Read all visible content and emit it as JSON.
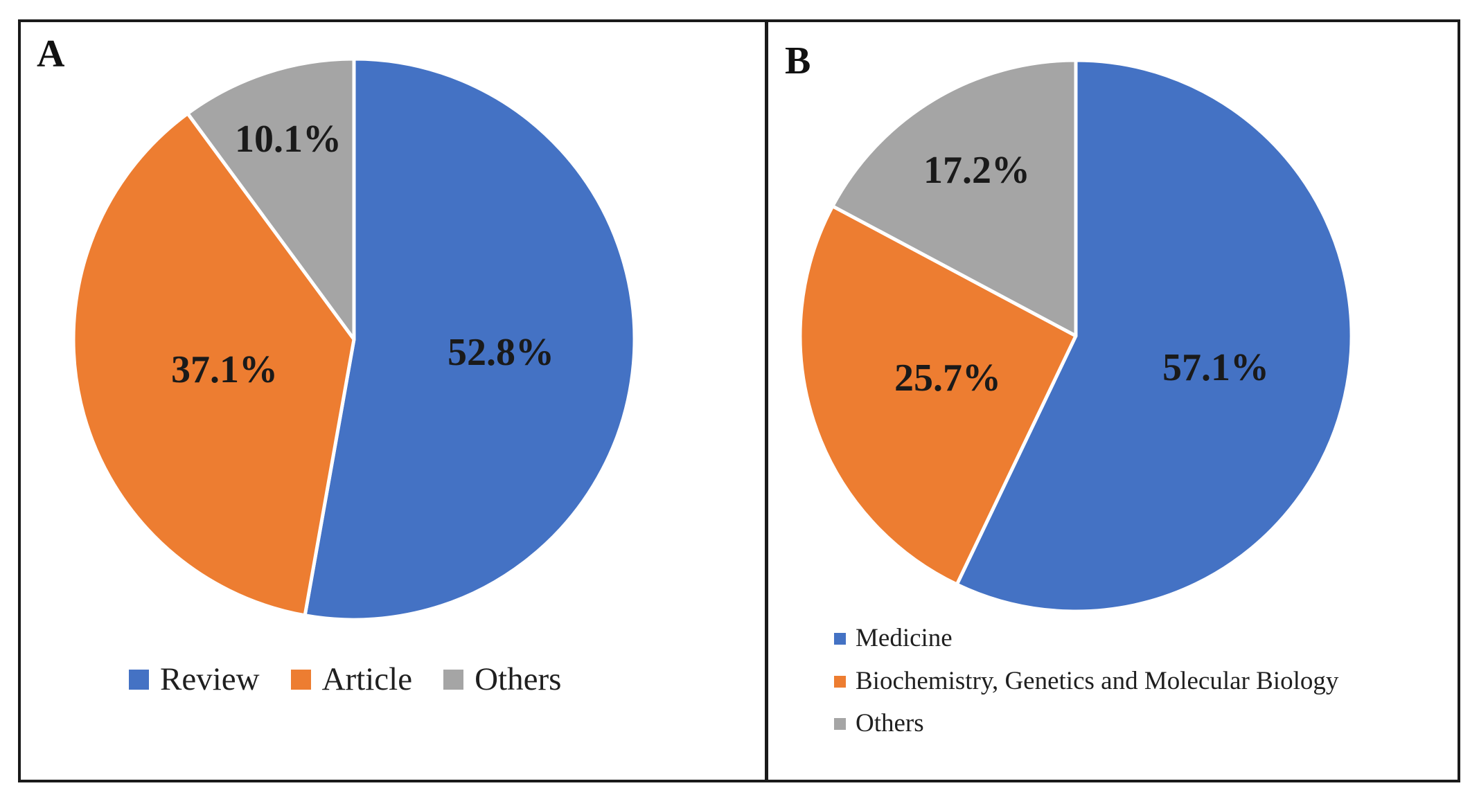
{
  "figure": {
    "panel_a_label": "A",
    "panel_b_label": "B"
  },
  "colors": {
    "blue": "#4472C4",
    "orange": "#ED7D31",
    "gray": "#A5A5A5",
    "border": "#1A1A1A",
    "label_text": "#1A1A1A",
    "slice_separator": "#FFFFFF"
  },
  "chart_data": [
    {
      "type": "pie",
      "panel": "A",
      "title": "",
      "legend_position": "bottom-horizontal",
      "start_angle_deg": 0,
      "direction": "clockwise",
      "slices": [
        {
          "label": "Review",
          "value_pct": 52.8,
          "display": "52.8%",
          "color": "#4472C4",
          "label_r_frac": 0.525
        },
        {
          "label": "Article",
          "value_pct": 37.1,
          "display": "37.1%",
          "color": "#ED7D31",
          "label_r_frac": 0.475
        },
        {
          "label": "Others",
          "value_pct": 10.1,
          "display": "10.1%",
          "color": "#A5A5A5",
          "label_r_frac": 0.75
        }
      ]
    },
    {
      "type": "pie",
      "panel": "B",
      "title": "",
      "legend_position": "bottom-left-vertical",
      "start_angle_deg": 0,
      "direction": "clockwise",
      "slices": [
        {
          "label": "Medicine",
          "value_pct": 57.1,
          "display": "57.1%",
          "color": "#4472C4",
          "label_r_frac": 0.52
        },
        {
          "label": "Biochemistry, Genetics and Molecular Biology",
          "value_pct": 25.7,
          "display": "25.7%",
          "color": "#ED7D31",
          "label_r_frac": 0.49
        },
        {
          "label": "Others",
          "value_pct": 17.2,
          "display": "17.2%",
          "color": "#A5A5A5",
          "label_r_frac": 0.7
        }
      ]
    }
  ]
}
